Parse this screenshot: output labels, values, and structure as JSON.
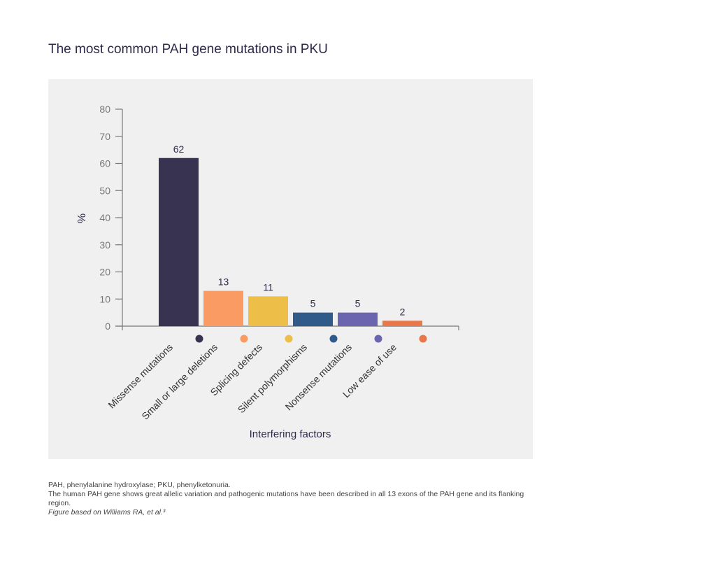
{
  "title": "The most common PAH gene mutations in PKU",
  "chart_data": {
    "type": "bar",
    "title": "The most common PAH gene mutations in PKU",
    "xlabel": "Interfering factors",
    "ylabel": "%",
    "ylim": [
      0,
      80
    ],
    "yticks": [
      0,
      10,
      20,
      30,
      40,
      50,
      60,
      70,
      80
    ],
    "grid": false,
    "categories": [
      "Missense mutations",
      "Small or large deletions",
      "Splicing defects",
      "Silent polymorphisms",
      "Nonsense mutations",
      "Low ease of use"
    ],
    "values": [
      62,
      13,
      11,
      5,
      5,
      2
    ],
    "data_labels": [
      "62",
      "13",
      "11",
      "5",
      "5",
      "2"
    ],
    "colors": [
      "#373350",
      "#fa9b63",
      "#edbf48",
      "#2f5a8a",
      "#6b65b0",
      "#e8784a"
    ]
  },
  "footnotes": {
    "abbreviations": "PAH, phenylalanine hydroxylase; PKU, phenylketonuria.",
    "description": "The human PAH gene shows great allelic variation and pathogenic mutations have been described in all 13 exons of the PAH gene and its flanking region.",
    "source": "Figure based on Williams RA, et al.³"
  }
}
